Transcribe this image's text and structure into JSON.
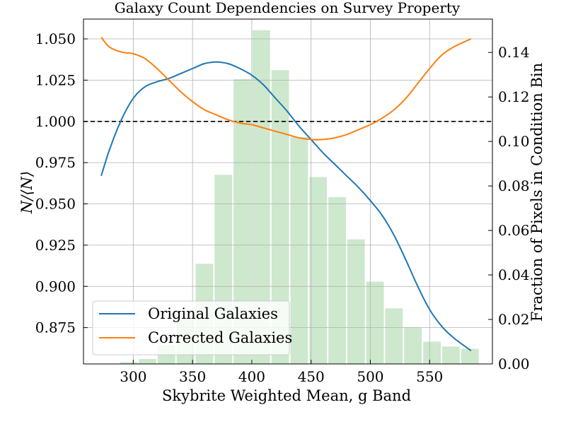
{
  "chart_data": {
    "type": "line",
    "title": "Galaxy Count Dependencies on Survey Property",
    "xlabel": "Skybrite Weighted Mean, g Band",
    "ylabel_left": "N/⟨N⟩",
    "ylabel_right": "Fraction of Pixels in Condition Bin",
    "xlim": [
      258,
      603
    ],
    "ylim_left": [
      0.853,
      1.062
    ],
    "ylim_right": [
      0.0,
      0.155
    ],
    "x_ticks": [
      300,
      350,
      400,
      450,
      500,
      550
    ],
    "y_ticks_left": [
      0.875,
      0.9,
      0.925,
      0.95,
      0.975,
      1.0,
      1.025,
      1.05
    ],
    "y_ticks_right": [
      0.0,
      0.02,
      0.04,
      0.06,
      0.08,
      0.1,
      0.12,
      0.14
    ],
    "x_tick_labels": [
      "300",
      "350",
      "400",
      "450",
      "500",
      "550"
    ],
    "y_tick_labels_left": [
      "0.875",
      "0.900",
      "0.925",
      "0.950",
      "0.975",
      "1.000",
      "1.025",
      "1.050"
    ],
    "y_tick_labels_right": [
      "0.00",
      "0.02",
      "0.04",
      "0.06",
      "0.08",
      "0.10",
      "0.12",
      "0.14"
    ],
    "grid": true,
    "reference_line": {
      "y": 1.0,
      "style": "dashed",
      "color": "#000000"
    },
    "legend_position": "lower-left",
    "series": [
      {
        "name": "Original Galaxies",
        "color": "#1f77b4",
        "x": [
          273,
          280,
          290,
          300,
          310,
          320,
          330,
          340,
          350,
          360,
          370,
          380,
          390,
          400,
          410,
          420,
          430,
          440,
          450,
          460,
          470,
          480,
          490,
          500,
          510,
          520,
          530,
          540,
          550,
          560,
          570,
          585
        ],
        "y": [
          0.967,
          0.983,
          1.001,
          1.014,
          1.021,
          1.024,
          1.026,
          1.029,
          1.032,
          1.035,
          1.036,
          1.035,
          1.032,
          1.028,
          1.022,
          1.014,
          1.006,
          0.997,
          0.989,
          0.981,
          0.974,
          0.967,
          0.96,
          0.952,
          0.943,
          0.931,
          0.916,
          0.9,
          0.886,
          0.876,
          0.869,
          0.861
        ]
      },
      {
        "name": "Corrected Galaxies",
        "color": "#ff7f0e",
        "x": [
          273,
          280,
          290,
          300,
          310,
          320,
          330,
          340,
          350,
          360,
          370,
          380,
          390,
          400,
          410,
          420,
          430,
          440,
          450,
          460,
          470,
          480,
          490,
          500,
          510,
          520,
          530,
          540,
          550,
          560,
          570,
          585
        ],
        "y": [
          1.051,
          1.045,
          1.042,
          1.041,
          1.038,
          1.032,
          1.025,
          1.018,
          1.012,
          1.007,
          1.004,
          1.001,
          0.999,
          0.998,
          0.996,
          0.994,
          0.992,
          0.99,
          0.989,
          0.989,
          0.99,
          0.992,
          0.995,
          0.998,
          1.002,
          1.007,
          1.014,
          1.023,
          1.032,
          1.04,
          1.045,
          1.05
        ]
      }
    ],
    "histogram": {
      "color": "#2ca02c",
      "bins": [
        {
          "x0": 273,
          "x1": 288,
          "value": 0.0
        },
        {
          "x0": 288,
          "x1": 304,
          "value": 0.0008
        },
        {
          "x0": 304,
          "x1": 320,
          "value": 0.0022
        },
        {
          "x0": 320,
          "x1": 336,
          "value": 0.0085
        },
        {
          "x0": 336,
          "x1": 352,
          "value": 0.0205
        },
        {
          "x0": 352,
          "x1": 368,
          "value": 0.045
        },
        {
          "x0": 368,
          "x1": 384,
          "value": 0.085
        },
        {
          "x0": 384,
          "x1": 400,
          "value": 0.128
        },
        {
          "x0": 400,
          "x1": 416,
          "value": 0.15
        },
        {
          "x0": 416,
          "x1": 432,
          "value": 0.132
        },
        {
          "x0": 432,
          "x1": 448,
          "value": 0.102
        },
        {
          "x0": 448,
          "x1": 464,
          "value": 0.084
        },
        {
          "x0": 464,
          "x1": 480,
          "value": 0.075
        },
        {
          "x0": 480,
          "x1": 496,
          "value": 0.056
        },
        {
          "x0": 496,
          "x1": 512,
          "value": 0.037
        },
        {
          "x0": 512,
          "x1": 528,
          "value": 0.025
        },
        {
          "x0": 528,
          "x1": 544,
          "value": 0.0165
        },
        {
          "x0": 544,
          "x1": 560,
          "value": 0.01
        },
        {
          "x0": 560,
          "x1": 576,
          "value": 0.0078
        },
        {
          "x0": 576,
          "x1": 592,
          "value": 0.0068
        }
      ]
    }
  }
}
